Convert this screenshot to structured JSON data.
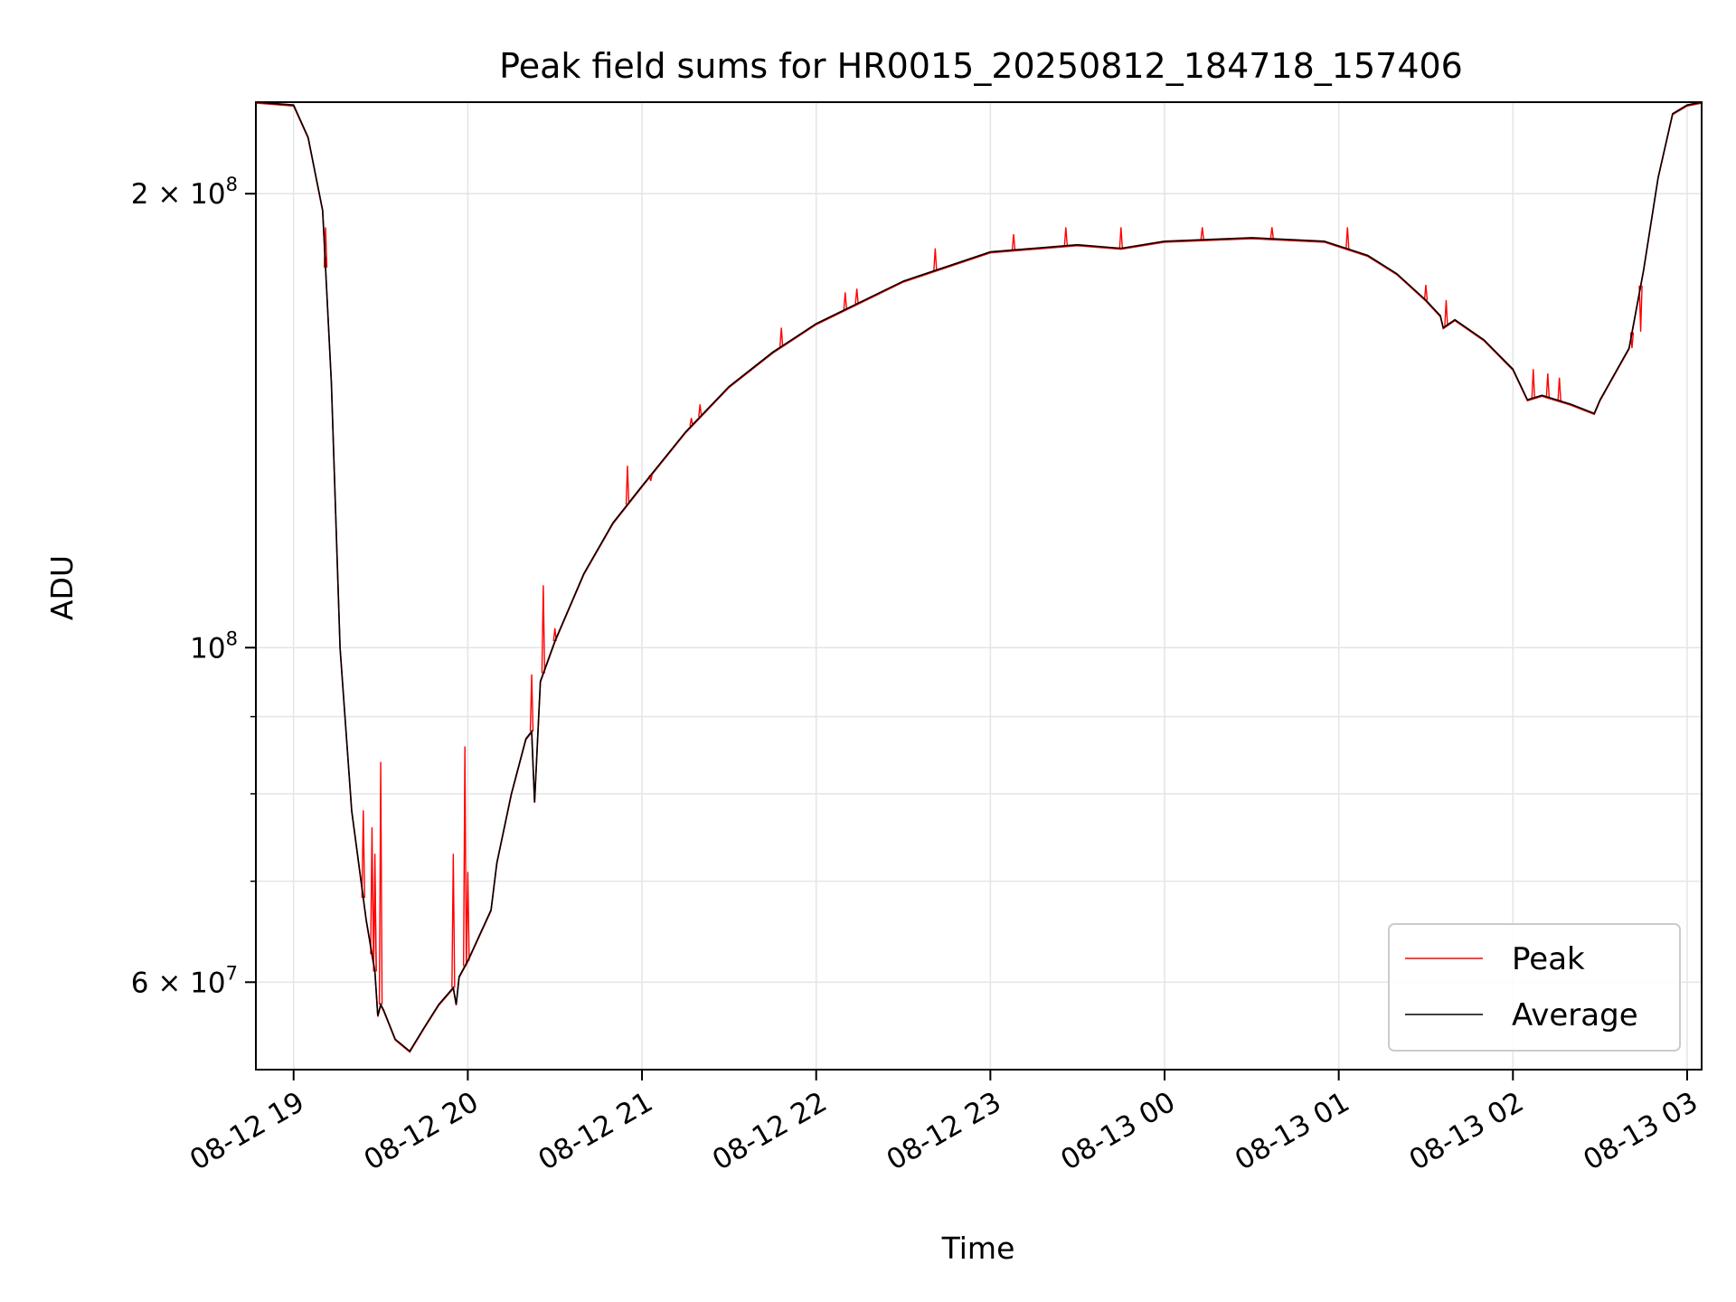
{
  "chart_data": {
    "type": "line",
    "title": "Peak field sums for HR0015_20250812_184718_157406",
    "xlabel": "Time",
    "ylabel": "ADU",
    "yscale": "log",
    "ylim": [
      52500000,
      230000000
    ],
    "xlim": [
      "2025-08-12 18:47",
      "2025-08-13 03:05"
    ],
    "grid": true,
    "legend_position": "lower-right",
    "x_ticks": [
      {
        "t": "2025-08-12 19:00",
        "label": "08-12 19"
      },
      {
        "t": "2025-08-12 20:00",
        "label": "08-12 20"
      },
      {
        "t": "2025-08-12 21:00",
        "label": "08-12 21"
      },
      {
        "t": "2025-08-12 22:00",
        "label": "08-12 22"
      },
      {
        "t": "2025-08-12 23:00",
        "label": "08-12 23"
      },
      {
        "t": "2025-08-13 00:00",
        "label": "08-13 00"
      },
      {
        "t": "2025-08-13 01:00",
        "label": "08-13 01"
      },
      {
        "t": "2025-08-13 02:00",
        "label": "08-13 02"
      },
      {
        "t": "2025-08-13 03:00",
        "label": "08-13 03"
      }
    ],
    "y_major_ticks": [
      {
        "value": 60000000,
        "base": "6 × 10",
        "exp": "7"
      },
      {
        "value": 100000000,
        "base": "10",
        "exp": "8"
      },
      {
        "value": 200000000,
        "base": "2 × 10",
        "exp": "8"
      }
    ],
    "y_minor_ticks": [
      70000000,
      80000000,
      90000000
    ],
    "series": [
      {
        "name": "Peak",
        "color": "#ff0000",
        "x": [
          "2025-08-12 19:11",
          "2025-08-12 19:24",
          "2025-08-12 19:27",
          "2025-08-12 19:28",
          "2025-08-12 19:28",
          "2025-08-12 19:30",
          "2025-08-12 19:55",
          "2025-08-12 19:59",
          "2025-08-12 20:00",
          "2025-08-12 20:22",
          "2025-08-12 20:26",
          "2025-08-12 20:30",
          "2025-08-12 20:55",
          "2025-08-12 21:03",
          "2025-08-12 21:17",
          "2025-08-12 21:20",
          "2025-08-12 21:48",
          "2025-08-12 22:10",
          "2025-08-12 22:14",
          "2025-08-12 22:41",
          "2025-08-12 23:08",
          "2025-08-12 23:26",
          "2025-08-12 23:45",
          "2025-08-13 00:13",
          "2025-08-13 00:37",
          "2025-08-13 01:03",
          "2025-08-13 01:30",
          "2025-08-13 01:37",
          "2025-08-13 02:07",
          "2025-08-13 02:12",
          "2025-08-13 02:16",
          "2025-08-13 02:41",
          "2025-08-13 02:44"
        ],
        "values": [
          190000000,
          78000000,
          76000000,
          73000000,
          71000000,
          84000000,
          73000000,
          86000000,
          71000000,
          96000000,
          110000000,
          103000000,
          132000000,
          129000000,
          142000000,
          145000000,
          163000000,
          172000000,
          173000000,
          184000000,
          188000000,
          190000000,
          190000000,
          190000000,
          190000000,
          190000000,
          174000000,
          170000000,
          153000000,
          152000000,
          151000000,
          158000000,
          162000000
        ]
      },
      {
        "name": "Average",
        "color": "#000000",
        "x": [
          "2025-08-12 18:47",
          "2025-08-12 19:00",
          "2025-08-12 19:05",
          "2025-08-12 19:10",
          "2025-08-12 19:13",
          "2025-08-12 19:16",
          "2025-08-12 19:20",
          "2025-08-12 19:25",
          "2025-08-12 19:28",
          "2025-08-12 19:29",
          "2025-08-12 19:30",
          "2025-08-12 19:31",
          "2025-08-12 19:35",
          "2025-08-12 19:40",
          "2025-08-12 19:45",
          "2025-08-12 19:50",
          "2025-08-12 19:55",
          "2025-08-12 19:56",
          "2025-08-12 19:57",
          "2025-08-12 20:00",
          "2025-08-12 20:08",
          "2025-08-12 20:10",
          "2025-08-12 20:15",
          "2025-08-12 20:20",
          "2025-08-12 20:22",
          "2025-08-12 20:23",
          "2025-08-12 20:25",
          "2025-08-12 20:30",
          "2025-08-12 20:40",
          "2025-08-12 20:50",
          "2025-08-12 21:00",
          "2025-08-12 21:15",
          "2025-08-12 21:30",
          "2025-08-12 21:45",
          "2025-08-12 22:00",
          "2025-08-12 22:30",
          "2025-08-12 23:00",
          "2025-08-12 23:30",
          "2025-08-12 23:45",
          "2025-08-13 00:00",
          "2025-08-13 00:30",
          "2025-08-13 00:55",
          "2025-08-13 01:10",
          "2025-08-13 01:20",
          "2025-08-13 01:30",
          "2025-08-13 01:35",
          "2025-08-13 01:36",
          "2025-08-13 01:40",
          "2025-08-13 01:50",
          "2025-08-13 02:00",
          "2025-08-13 02:05",
          "2025-08-13 02:10",
          "2025-08-13 02:20",
          "2025-08-13 02:28",
          "2025-08-13 02:30",
          "2025-08-13 02:40",
          "2025-08-13 02:45",
          "2025-08-13 02:50",
          "2025-08-13 02:55",
          "2025-08-13 03:00",
          "2025-08-13 03:05"
        ],
        "values": [
          230000000,
          229000000,
          218000000,
          195000000,
          150000000,
          100000000,
          78000000,
          66000000,
          61000000,
          57000000,
          58000000,
          57500000,
          55000000,
          54000000,
          56000000,
          58000000,
          59500000,
          58000000,
          60500000,
          62000000,
          67000000,
          72000000,
          80000000,
          87000000,
          88000000,
          79000000,
          95000000,
          101000000,
          112000000,
          121000000,
          128000000,
          139000000,
          149000000,
          157000000,
          164000000,
          175000000,
          183000000,
          185000000,
          184000000,
          186000000,
          187000000,
          186000000,
          182000000,
          177000000,
          170000000,
          166000000,
          163000000,
          165000000,
          160000000,
          153000000,
          146000000,
          147000000,
          145000000,
          143000000,
          146000000,
          158000000,
          178000000,
          205000000,
          226000000,
          229000000,
          230000000
        ]
      }
    ]
  }
}
